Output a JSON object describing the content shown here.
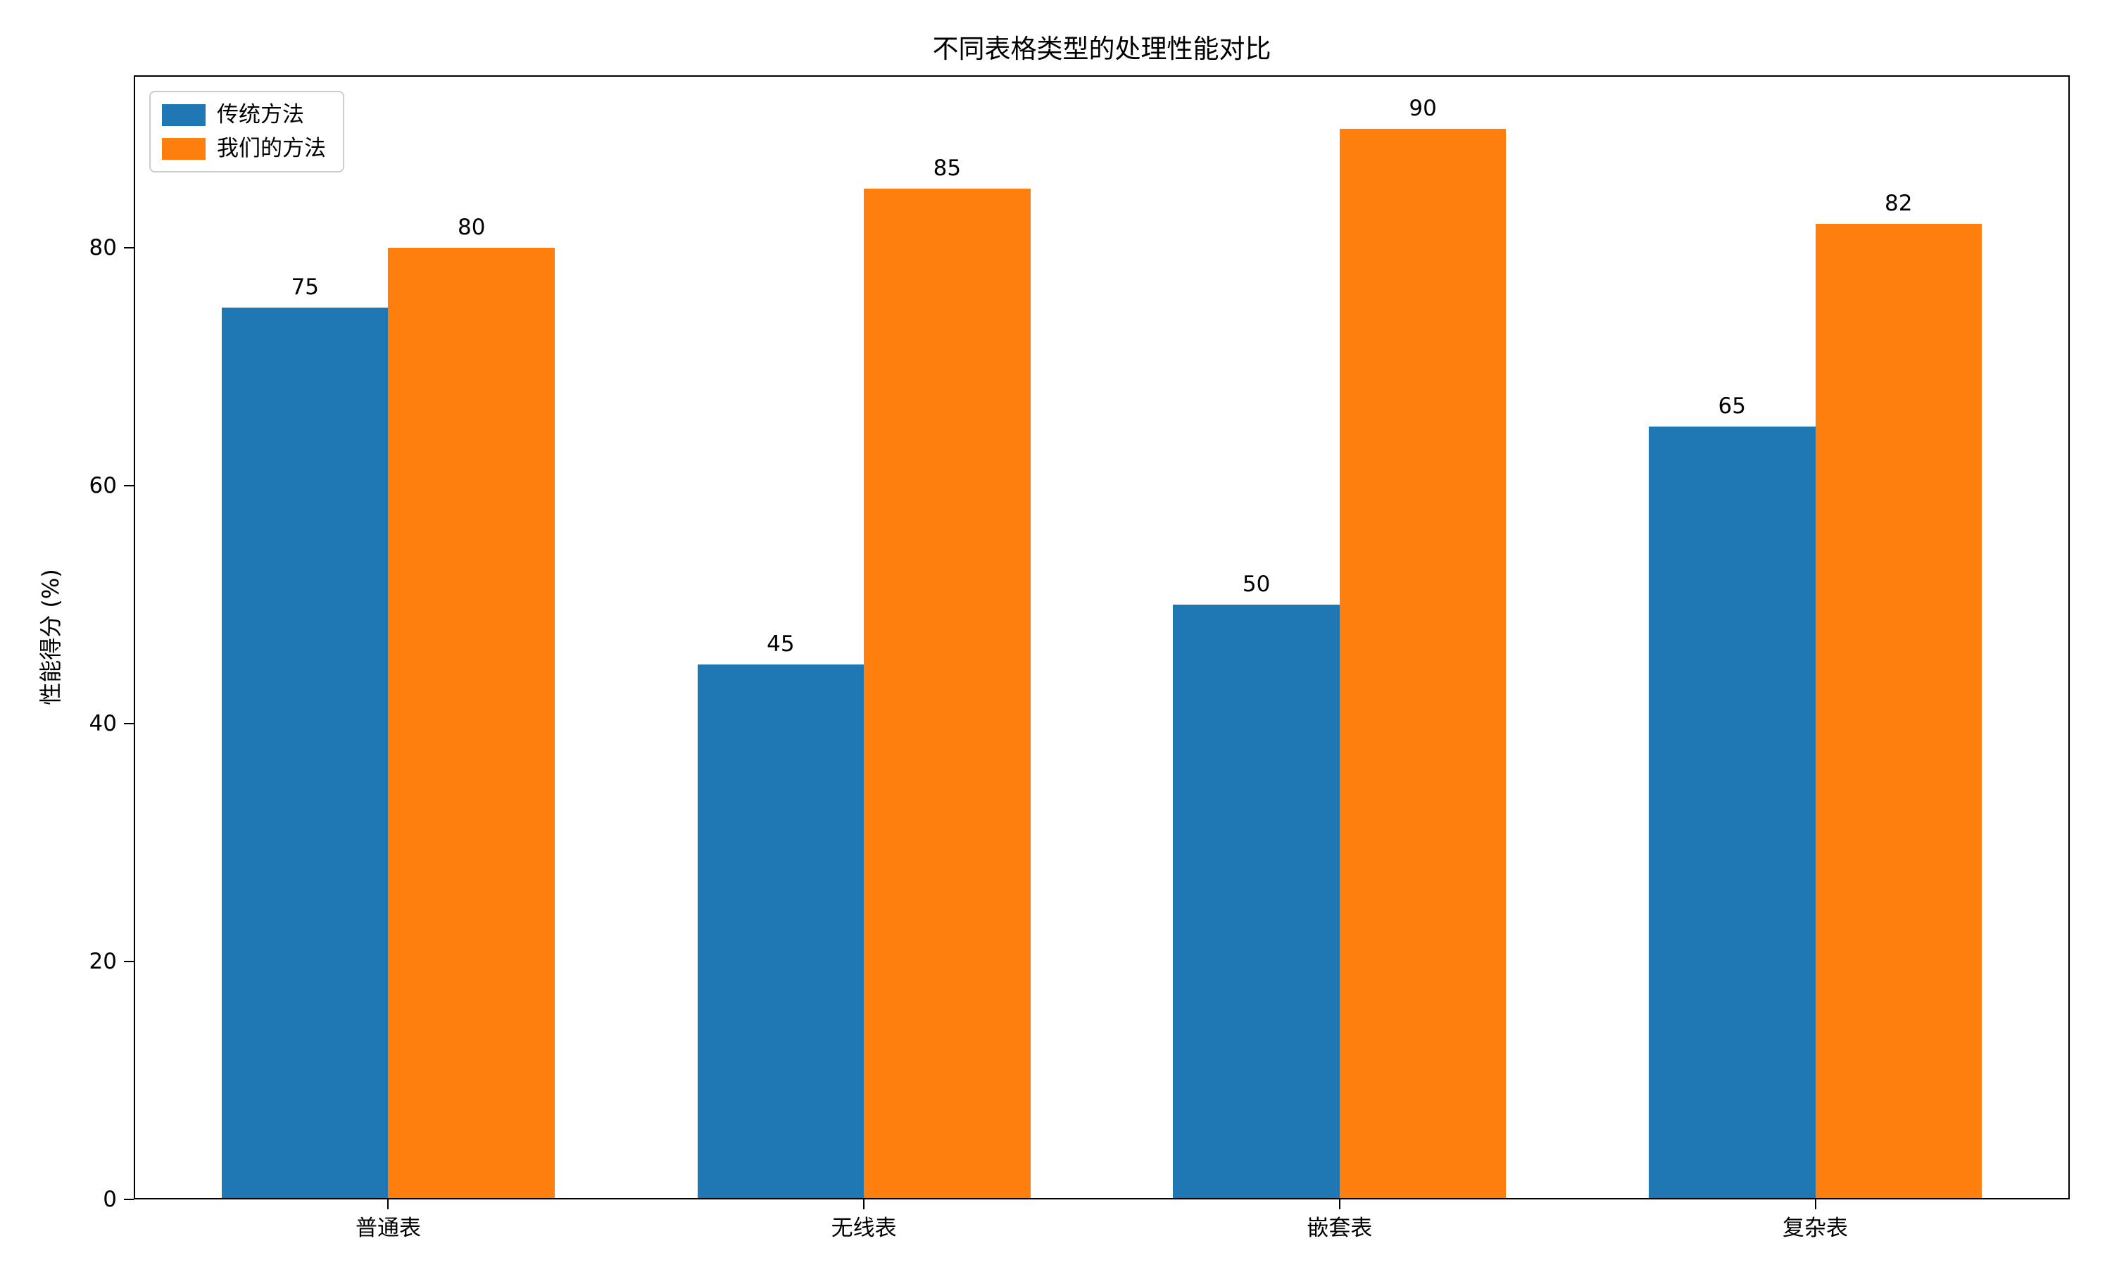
{
  "chart_data": {
    "type": "bar",
    "title": "不同表格类型的处理性能对比",
    "ylabel": "性能得分 (%)",
    "xlabel": "",
    "categories": [
      "普通表",
      "无线表",
      "嵌套表",
      "复杂表"
    ],
    "series": [
      {
        "name": "传统方法",
        "color": "#1f77b4",
        "values": [
          75,
          45,
          50,
          65
        ]
      },
      {
        "name": "我们的方法",
        "color": "#ff7f0e",
        "values": [
          80,
          85,
          90,
          82
        ]
      }
    ],
    "yticks": [
      0,
      20,
      40,
      60,
      80
    ],
    "ylim": [
      0,
      94.5
    ],
    "xlim": [
      -0.535,
      3.535
    ],
    "bar_value_labels": true,
    "legend_position": "upper-left",
    "grid": false,
    "background": "#ffffff",
    "text_color": "#000000"
  }
}
